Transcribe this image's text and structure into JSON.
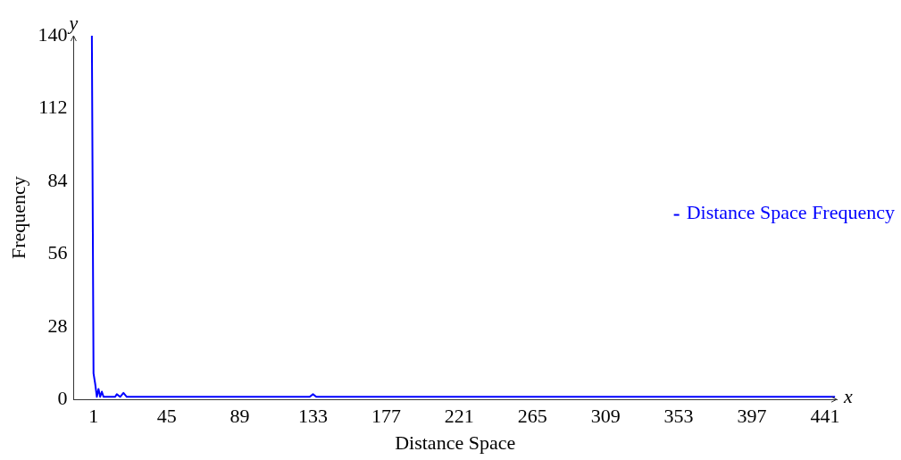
{
  "chart_data": {
    "type": "line",
    "xlabel": "Distance Space",
    "ylabel": "Frequency",
    "annotations": [
      "x",
      "y"
    ],
    "x": [
      0,
      1,
      2,
      3,
      4,
      5,
      6,
      7,
      8,
      14,
      15,
      17,
      19,
      21,
      131,
      133,
      135,
      447
    ],
    "series": [
      {
        "name": "Distance Space Frequency",
        "color": "#0000ff",
        "values": [
          140,
          10,
          6,
          1,
          4,
          1,
          3,
          1,
          1,
          1,
          2,
          1,
          2.5,
          1,
          1,
          2,
          1,
          1
        ]
      }
    ],
    "xlim": [
      -11,
      448
    ],
    "xticks": [
      1,
      45,
      89,
      133,
      177,
      221,
      265,
      309,
      353,
      397,
      441
    ],
    "ylim": [
      0,
      140
    ],
    "yticks": [
      0,
      28,
      56,
      84,
      112,
      140
    ],
    "grid": false,
    "legend": "right",
    "marker": "none",
    "line_style": "solid"
  }
}
